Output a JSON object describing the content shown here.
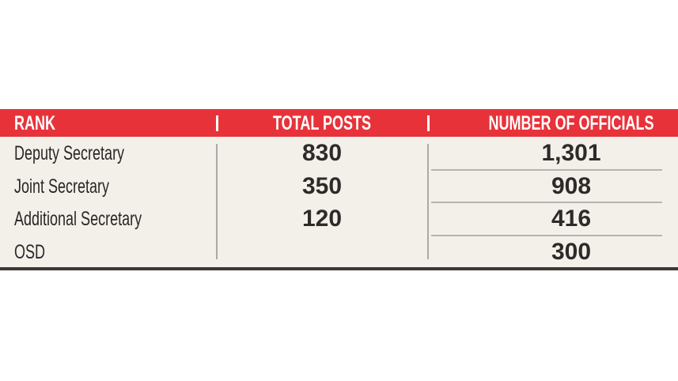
{
  "headers": [
    "RANK",
    "TOTAL POSTS",
    "NUMBER OF OFFICIALS"
  ],
  "rows": [
    {
      "rank": "Deputy Secretary",
      "total_posts": "830",
      "officials": "1,301"
    },
    {
      "rank": "Joint Secretary",
      "total_posts": "350",
      "officials": "908"
    },
    {
      "rank": "Additional Secretary",
      "total_posts": "120",
      "officials": "416"
    },
    {
      "rank": "OSD",
      "total_posts": "",
      "officials": "300"
    }
  ],
  "colors": {
    "header": "#e8323a",
    "background": "#f2f0e9",
    "text": "#2a2626"
  }
}
